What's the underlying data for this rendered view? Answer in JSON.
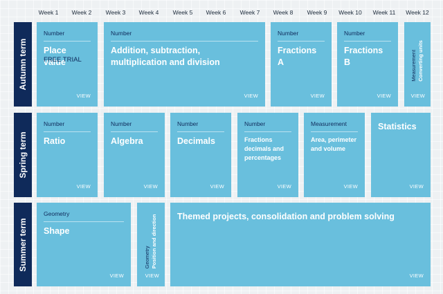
{
  "weeks": [
    "Week 1",
    "Week 2",
    "Week 3",
    "Week 4",
    "Week 5",
    "Week 6",
    "Week 7",
    "Week 8",
    "Week 9",
    "Week 10",
    "Week 11",
    "Week 12"
  ],
  "terms": {
    "autumn": "Autumn term",
    "spring": "Spring term",
    "summer": "Summer term"
  },
  "view_label": "VIEW",
  "autumn": {
    "place_value": {
      "category": "Number",
      "title": "Place value",
      "subtitle": "FREE TRIAL"
    },
    "addition": {
      "category": "Number",
      "title": "Addition, subtraction, multiplication and division"
    },
    "fractions_a": {
      "category": "Number",
      "title": "Fractions A"
    },
    "fractions_b": {
      "category": "Number",
      "title": "Fractions B"
    },
    "measurement": {
      "category": "Measurement",
      "title": "Converting units"
    }
  },
  "spring": {
    "ratio": {
      "category": "Number",
      "title": "Ratio"
    },
    "algebra": {
      "category": "Number",
      "title": "Algebra"
    },
    "decimals": {
      "category": "Number",
      "title": "Decimals"
    },
    "fdp": {
      "category": "Number",
      "title": "Fractions decimals and percentages"
    },
    "area": {
      "category": "Measurement",
      "title": "Area, perimeter and volume"
    },
    "statistics": {
      "title": "Statistics"
    }
  },
  "summer": {
    "shape": {
      "category": "Geometry",
      "title": "Shape"
    },
    "position": {
      "category": "Geometry",
      "title": "Position and direction"
    },
    "themed": {
      "title": "Themed projects, consolidation and problem solving"
    }
  }
}
